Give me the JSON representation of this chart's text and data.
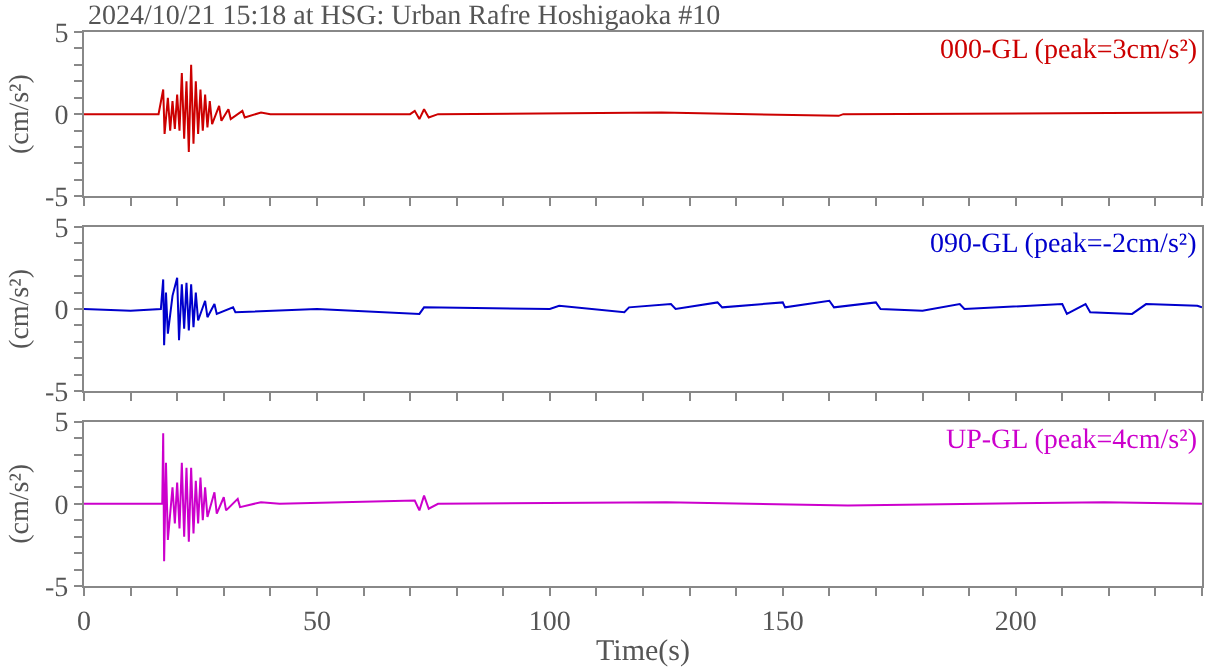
{
  "chart_data": [
    {
      "type": "line",
      "title": "2024/10/21 15:18 at HSG: Urban Rafre Hoshigaoka #10",
      "ylabel": "(cm/s²)",
      "annotations": [
        "000-GL (peak=3cm/s²)"
      ],
      "tick_labels": "y",
      "xlim": [
        0,
        240
      ],
      "xticks": [
        0,
        {
          "value": 10,
          "label": null
        },
        {
          "value": 20,
          "label": null
        },
        {
          "value": 30,
          "label": null
        },
        {
          "value": 40,
          "label": null
        },
        50,
        {
          "value": 60,
          "label": null
        },
        {
          "value": 70,
          "label": null
        },
        {
          "value": 80,
          "label": null
        },
        {
          "value": 90,
          "label": null
        },
        100,
        {
          "value": 110,
          "label": null
        },
        {
          "value": 120,
          "label": null
        },
        {
          "value": 130,
          "label": null
        },
        {
          "value": 140,
          "label": null
        },
        150,
        {
          "value": 160,
          "label": null
        },
        {
          "value": 170,
          "label": null
        },
        {
          "value": 180,
          "label": null
        },
        {
          "value": 190,
          "label": null
        },
        200,
        {
          "value": 210,
          "label": null
        },
        {
          "value": 220,
          "label": null
        },
        {
          "value": 230,
          "label": null
        },
        240
      ],
      "ylim": [
        -5,
        5
      ],
      "yticks": [
        -5,
        {
          "value": -4,
          "label": null
        },
        {
          "value": -3,
          "label": null
        },
        {
          "value": -2,
          "label": null
        },
        {
          "value": -1,
          "label": null
        },
        0,
        {
          "value": 1,
          "label": null
        },
        {
          "value": 2,
          "label": null
        },
        {
          "value": 3,
          "label": null
        },
        {
          "value": 4,
          "label": null
        },
        5
      ],
      "series": [
        {
          "color": "#cc0000",
          "x": [
            0,
            16,
            17,
            17.3,
            18,
            18.5,
            19,
            19.5,
            20,
            20.5,
            21,
            21.5,
            22,
            22.5,
            23,
            23.5,
            24,
            24.5,
            25,
            25.5,
            26,
            26.5,
            27,
            27.5,
            29,
            29.5,
            31,
            31.5,
            34,
            34.5,
            38,
            40,
            70,
            71,
            72,
            73,
            74,
            76,
            124,
            162,
            163,
            240
          ],
          "values": [
            0,
            0,
            1.5,
            -1.2,
            1.0,
            -1.0,
            0.8,
            -0.9,
            1.2,
            -1.0,
            2.5,
            -1.5,
            2.0,
            -2.3,
            3.0,
            -1.8,
            2.0,
            -1.2,
            1.5,
            -1.0,
            1.2,
            -0.8,
            0.8,
            -0.6,
            0.5,
            -0.4,
            0.3,
            -0.3,
            0.2,
            -0.2,
            0.1,
            0,
            0,
            0.2,
            -0.3,
            0.3,
            -0.2,
            0,
            0.1,
            -0.1,
            0,
            0.1
          ]
        }
      ]
    },
    {
      "type": "line",
      "ylabel": "(cm/s²)",
      "annotations": [
        "090-GL (peak=-2cm/s²)"
      ],
      "tick_labels": "y",
      "xlim": [
        0,
        240
      ],
      "xticks": [
        0,
        {
          "value": 10,
          "label": null
        },
        {
          "value": 20,
          "label": null
        },
        {
          "value": 30,
          "label": null
        },
        {
          "value": 40,
          "label": null
        },
        50,
        {
          "value": 60,
          "label": null
        },
        {
          "value": 70,
          "label": null
        },
        {
          "value": 80,
          "label": null
        },
        {
          "value": 90,
          "label": null
        },
        100,
        {
          "value": 110,
          "label": null
        },
        {
          "value": 120,
          "label": null
        },
        {
          "value": 130,
          "label": null
        },
        {
          "value": 140,
          "label": null
        },
        150,
        {
          "value": 160,
          "label": null
        },
        {
          "value": 170,
          "label": null
        },
        {
          "value": 180,
          "label": null
        },
        {
          "value": 190,
          "label": null
        },
        200,
        {
          "value": 210,
          "label": null
        },
        {
          "value": 220,
          "label": null
        },
        {
          "value": 230,
          "label": null
        },
        240
      ],
      "ylim": [
        -5,
        5
      ],
      "yticks": [
        -5,
        {
          "value": -4,
          "label": null
        },
        {
          "value": -3,
          "label": null
        },
        {
          "value": -2,
          "label": null
        },
        {
          "value": -1,
          "label": null
        },
        0,
        {
          "value": 1,
          "label": null
        },
        {
          "value": 2,
          "label": null
        },
        {
          "value": 3,
          "label": null
        },
        {
          "value": 4,
          "label": null
        },
        5
      ],
      "series": [
        {
          "color": "#0000cc",
          "x": [
            0,
            10,
            16.5,
            17,
            17.2,
            17.6,
            18,
            19,
            20,
            20.4,
            21,
            21.5,
            22,
            22.5,
            23,
            23.5,
            24,
            24.5,
            26,
            26.5,
            28,
            28.5,
            32,
            32.5,
            50,
            72,
            73,
            100,
            102,
            116,
            117,
            126,
            127,
            136,
            137,
            150,
            150.5,
            160,
            161,
            170,
            171,
            180,
            188,
            189,
            210,
            211,
            215,
            216,
            225,
            228,
            239,
            240
          ],
          "values": [
            0,
            -0.1,
            0,
            1.8,
            -2.2,
            1.0,
            -1.5,
            0.8,
            1.9,
            -1.9,
            1.5,
            -1.2,
            1.6,
            -1.3,
            1.5,
            -1.1,
            1.0,
            -0.7,
            0.5,
            -0.5,
            0.3,
            -0.3,
            0.1,
            -0.2,
            0,
            -0.3,
            0.1,
            0,
            0.2,
            -0.2,
            0.1,
            0.3,
            0,
            0.4,
            0.1,
            0.4,
            0.1,
            0.5,
            0.1,
            0.4,
            0,
            -0.1,
            0.3,
            0,
            0.3,
            -0.3,
            0.3,
            -0.2,
            -0.3,
            0.3,
            0.2,
            0.1
          ]
        }
      ]
    },
    {
      "type": "line",
      "xlabel": "Time(s)",
      "ylabel": "(cm/s²)",
      "annotations": [
        "UP-GL (peak=4cm/s²)"
      ],
      "xlim": [
        0,
        240
      ],
      "xticks": [
        0,
        {
          "value": 10,
          "label": null
        },
        {
          "value": 20,
          "label": null
        },
        {
          "value": 30,
          "label": null
        },
        {
          "value": 40,
          "label": null
        },
        50,
        {
          "value": 60,
          "label": null
        },
        {
          "value": 70,
          "label": null
        },
        {
          "value": 80,
          "label": null
        },
        {
          "value": 90,
          "label": null
        },
        100,
        {
          "value": 110,
          "label": null
        },
        {
          "value": 120,
          "label": null
        },
        {
          "value": 130,
          "label": null
        },
        {
          "value": 140,
          "label": null
        },
        150,
        {
          "value": 160,
          "label": null
        },
        {
          "value": 170,
          "label": null
        },
        {
          "value": 180,
          "label": null
        },
        {
          "value": 190,
          "label": null
        },
        200,
        {
          "value": 210,
          "label": null
        },
        {
          "value": 220,
          "label": null
        },
        {
          "value": 230,
          "label": null
        },
        {
          "value": 240,
          "label": null
        }
      ],
      "ylim": [
        -5,
        5
      ],
      "yticks": [
        -5,
        {
          "value": -4,
          "label": null
        },
        {
          "value": -3,
          "label": null
        },
        {
          "value": -2,
          "label": null
        },
        {
          "value": -1,
          "label": null
        },
        0,
        {
          "value": 1,
          "label": null
        },
        {
          "value": 2,
          "label": null
        },
        {
          "value": 3,
          "label": null
        },
        {
          "value": 4,
          "label": null
        },
        5
      ],
      "series": [
        {
          "color": "#cc00cc",
          "x": [
            0,
            16.8,
            17,
            17.2,
            17.6,
            18,
            19,
            19.5,
            20,
            20.5,
            21,
            21.5,
            22,
            22.5,
            23,
            23.5,
            24,
            24.5,
            25,
            25.5,
            26,
            26.5,
            28,
            28.5,
            30,
            30.5,
            33,
            33.5,
            38,
            42,
            71,
            72,
            73,
            74,
            76,
            125,
            164,
            219,
            240
          ],
          "values": [
            0,
            0,
            4.3,
            -3.5,
            2.5,
            -2.2,
            1.0,
            -1.2,
            1.3,
            -1.5,
            2.5,
            -2.0,
            2.2,
            -2.3,
            2.2,
            -1.8,
            1.4,
            -1.2,
            1.6,
            -1.0,
            1.0,
            -0.8,
            0.7,
            -0.6,
            0.4,
            -0.4,
            0.3,
            -0.2,
            0.1,
            0,
            0.2,
            -0.4,
            0.5,
            -0.3,
            0,
            0.1,
            -0.1,
            0.1,
            0
          ]
        }
      ]
    }
  ]
}
